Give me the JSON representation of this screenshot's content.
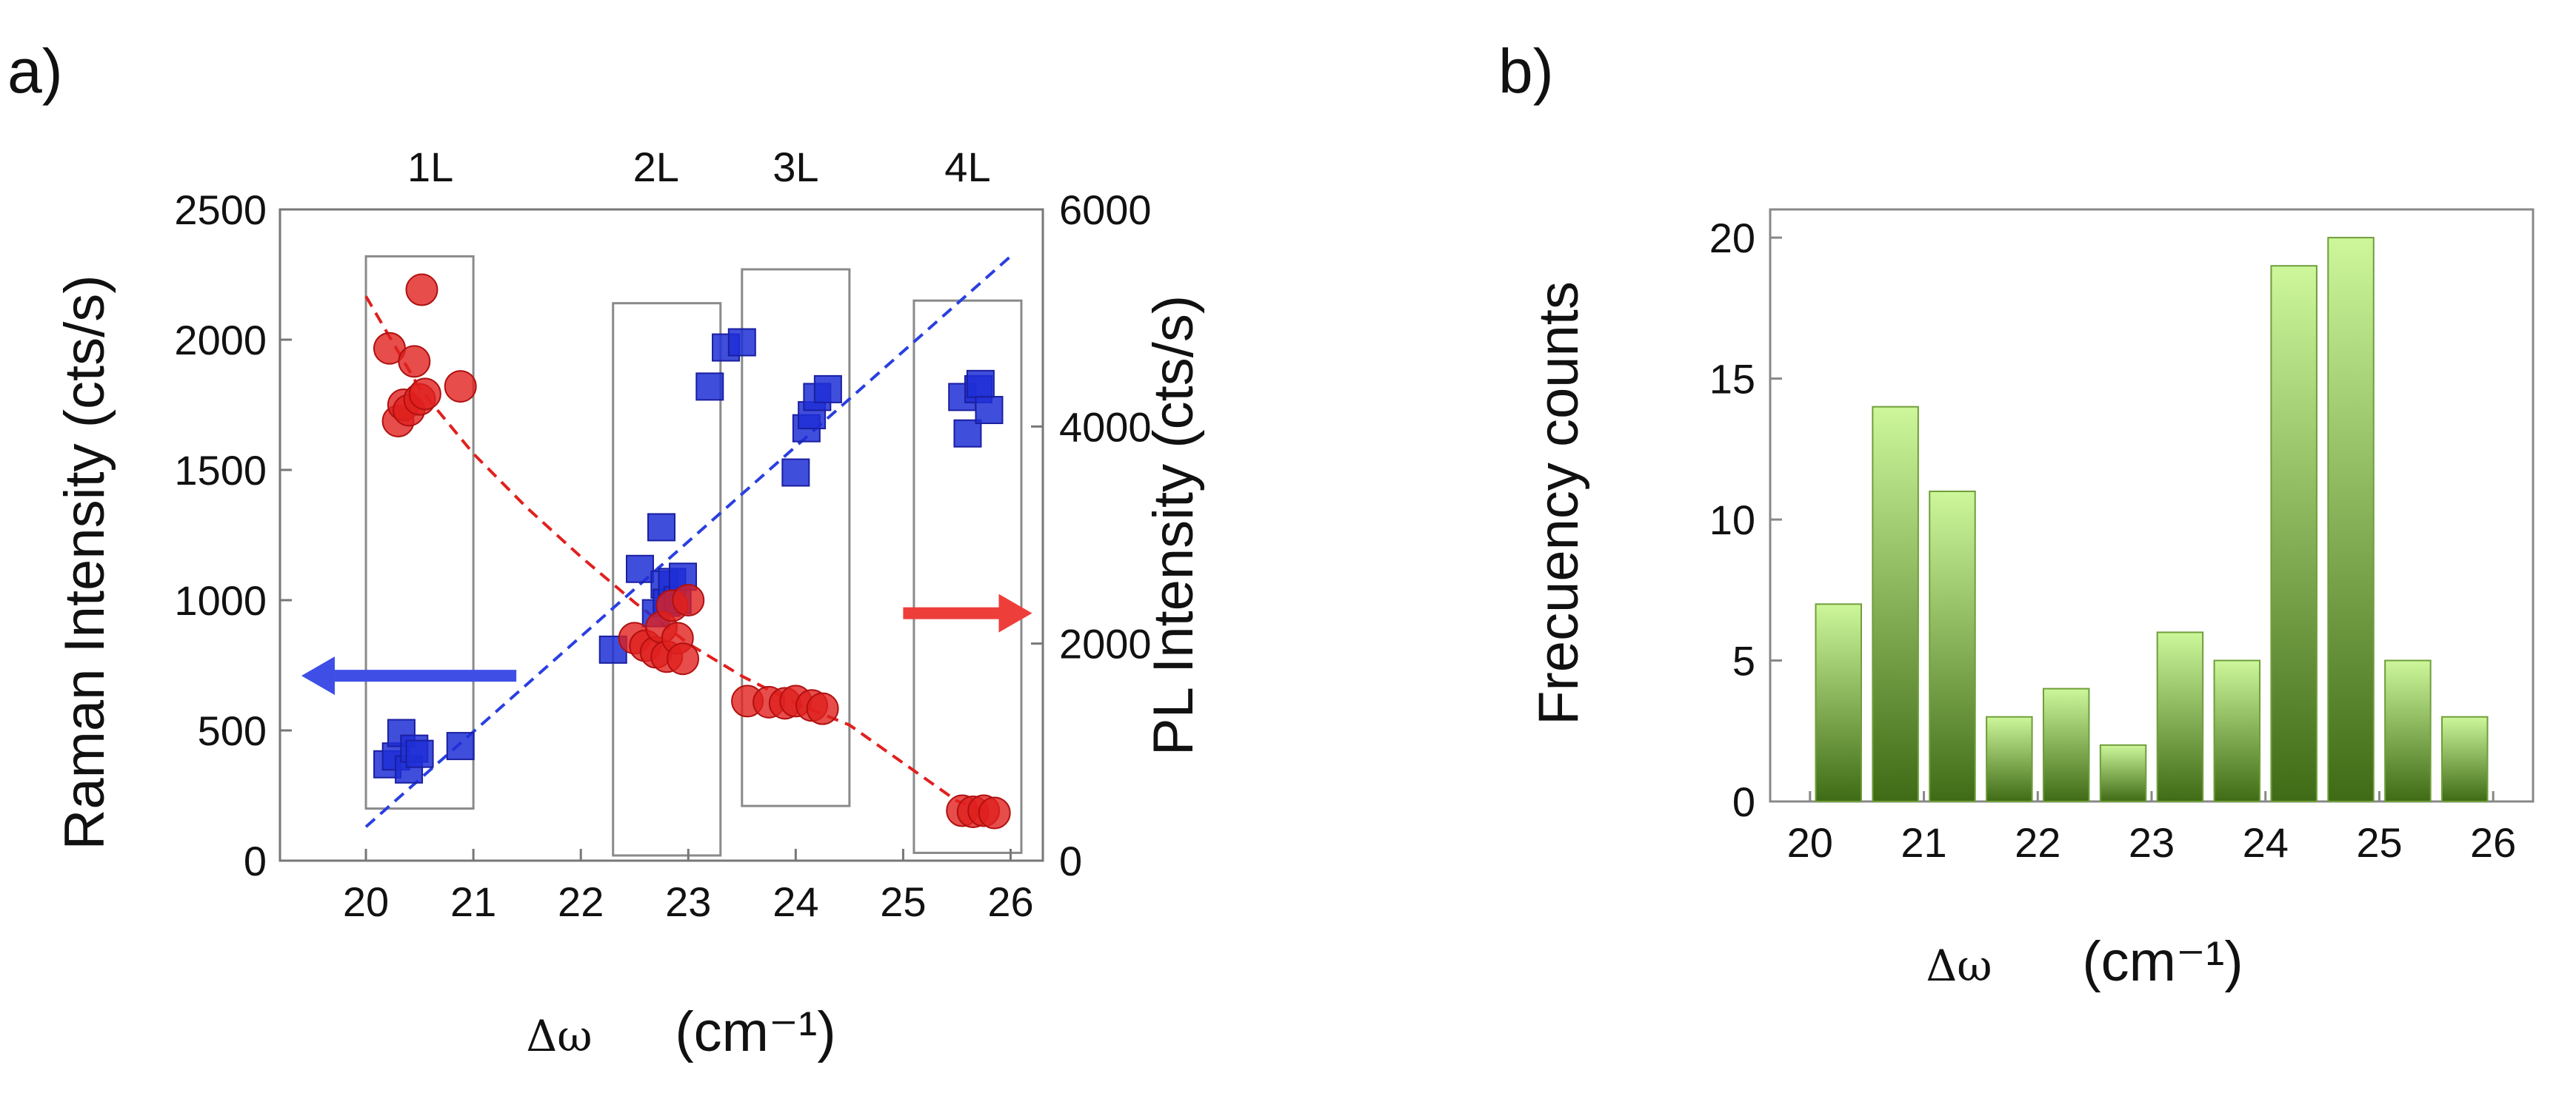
{
  "panels": {
    "a": {
      "label": "a)"
    },
    "b": {
      "label": "b)"
    }
  },
  "chart_data": [
    {
      "type": "scatter",
      "panel": "a",
      "xlabel_symbol": "Δω",
      "xlabel_unit": "(cm⁻¹)",
      "ylabel": "Raman Intensity (cts/s)",
      "y2label": "PL Intensity (cts/s)",
      "xlim": [
        19.2,
        26.3
      ],
      "ylim": [
        0,
        2500
      ],
      "y2lim": [
        0,
        6000
      ],
      "xticks": [
        20,
        21,
        22,
        23,
        24,
        25,
        26
      ],
      "yticks": [
        0,
        500,
        1000,
        1500,
        2000,
        2500
      ],
      "y2ticks": [
        0,
        2000,
        4000,
        6000
      ],
      "layer_labels": [
        {
          "text": "1L",
          "x": 20.6
        },
        {
          "text": "2L",
          "x": 22.7
        },
        {
          "text": "3L",
          "x": 24.0
        },
        {
          "text": "4L",
          "x": 25.6
        }
      ],
      "layer_boxes": [
        {
          "x0": 20.0,
          "x1": 21.0,
          "ylow": 200,
          "yhigh": 2320
        },
        {
          "x0": 22.3,
          "x1": 23.3,
          "ylow": 20,
          "yhigh": 2140
        },
        {
          "x0": 23.5,
          "x1": 24.5,
          "ylow": 210,
          "yhigh": 2270
        },
        {
          "x0": 25.1,
          "x1": 26.1,
          "ylow": 30,
          "yhigh": 2150
        }
      ],
      "series": [
        {
          "name": "Raman Intensity",
          "axis": "left",
          "marker": "square",
          "color": "#1f2fd6",
          "x": [
            20.2,
            20.28,
            20.33,
            20.4,
            20.45,
            20.5,
            20.88,
            22.3,
            22.55,
            22.7,
            22.75,
            22.78,
            22.8,
            22.85,
            22.9,
            22.95,
            23.2,
            23.35,
            23.5,
            24.0,
            24.1,
            24.15,
            24.2,
            24.3,
            25.55,
            25.6,
            25.7,
            25.72,
            25.8
          ],
          "y": [
            370,
            400,
            490,
            350,
            430,
            410,
            440,
            810,
            1120,
            950,
            1280,
            1060,
            990,
            1070,
            1000,
            1090,
            1820,
            1970,
            1990,
            1490,
            1660,
            1710,
            1780,
            1810,
            1780,
            1640,
            1810,
            1830,
            1730
          ]
        },
        {
          "name": "PL Intensity",
          "axis": "right",
          "marker": "circle",
          "color": "#e0201e",
          "x": [
            20.22,
            20.3,
            20.35,
            20.4,
            20.45,
            20.5,
            20.55,
            20.88,
            20.52,
            22.5,
            22.6,
            22.7,
            22.75,
            22.8,
            22.85,
            22.9,
            22.95,
            23.0,
            23.55,
            23.75,
            23.9,
            24.0,
            24.15,
            24.25,
            25.55,
            25.65,
            25.75,
            25.85
          ],
          "y": [
            4720,
            4050,
            4200,
            4150,
            4600,
            4250,
            4300,
            4370,
            5260,
            2050,
            1980,
            1920,
            2150,
            1880,
            2350,
            2050,
            1860,
            2400,
            1470,
            1460,
            1450,
            1470,
            1430,
            1400,
            460,
            450,
            460,
            440
          ]
        }
      ],
      "fits": [
        {
          "name": "Raman fit",
          "color": "#2a3fe0",
          "x": [
            20.0,
            26.0
          ],
          "y": [
            130,
            2320
          ]
        },
        {
          "name": "PL fit",
          "color": "#e0201e",
          "x": [
            20.0,
            20.5,
            21.0,
            21.5,
            22.0,
            22.5,
            23.0,
            23.5,
            24.0,
            24.5,
            25.0,
            25.5,
            25.8
          ],
          "y": [
            5200,
            4350,
            3750,
            3250,
            2800,
            2380,
            2000,
            1700,
            1450,
            1250,
            900,
            550,
            450
          ]
        }
      ],
      "arrows": [
        {
          "name": "raman-axis-arrow",
          "color": "#3f4fe6",
          "direction": "left",
          "x_from": 21.4,
          "x_to": 19.4,
          "y": 710,
          "axis": "left"
        },
        {
          "name": "pl-axis-arrow",
          "color": "#ee3e3a",
          "direction": "right",
          "x_from": 25.0,
          "x_to": 26.2,
          "y": 950,
          "axis": "left"
        }
      ]
    },
    {
      "type": "bar",
      "panel": "b",
      "xlabel_symbol": "Δω",
      "xlabel_unit": "(cm⁻¹)",
      "ylabel": "Frecuency counts",
      "xlim": [
        19.65,
        26.35
      ],
      "ylim": [
        0,
        21
      ],
      "xticks": [
        20,
        21,
        22,
        23,
        24,
        25,
        26
      ],
      "yticks": [
        0,
        5,
        10,
        15,
        20
      ],
      "bar_width": 0.4,
      "x": [
        20.25,
        20.75,
        21.25,
        21.75,
        22.25,
        22.75,
        23.25,
        23.75,
        24.25,
        24.75,
        25.25,
        25.75
      ],
      "values": [
        7,
        14,
        11,
        3,
        4,
        2,
        6,
        5,
        19,
        20,
        5,
        3
      ],
      "color_top": "#cdf79a",
      "color_bottom": "#3f6b16"
    }
  ]
}
